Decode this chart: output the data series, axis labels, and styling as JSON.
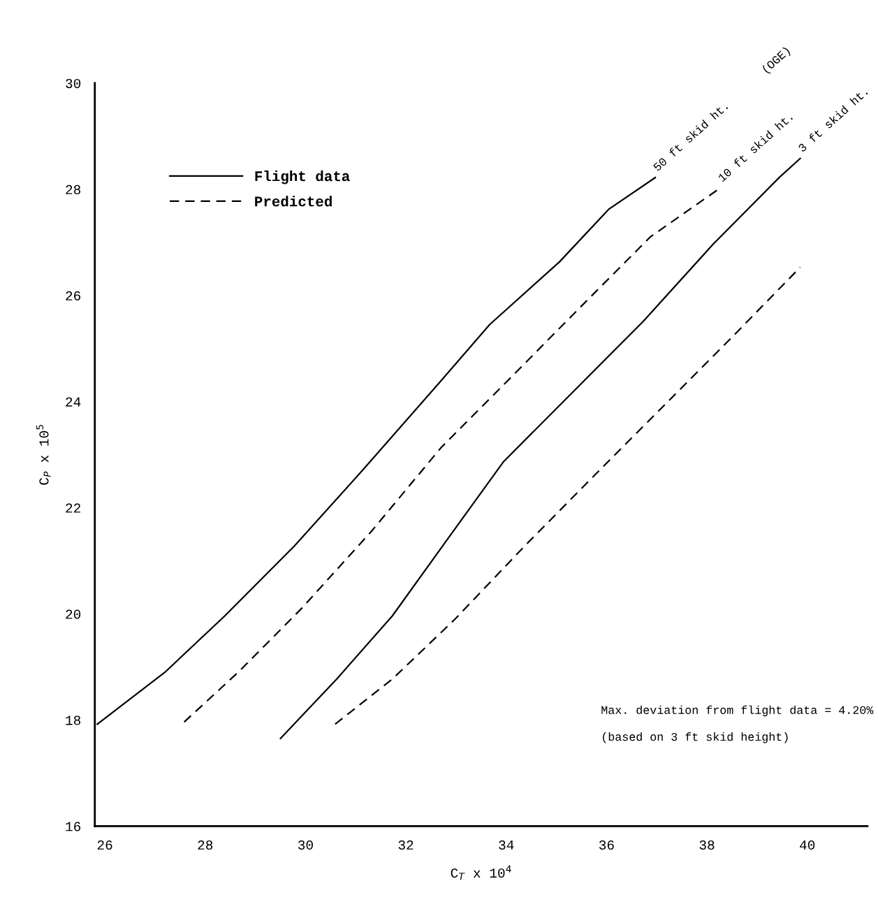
{
  "chart_data": {
    "type": "line",
    "xlabel": "C$_{T}$ x 10$^{4}$",
    "ylabel": "C$_{P}$ x 10$^{5}$",
    "xlim": [
      25.8,
      41.2
    ],
    "ylim": [
      16,
      30
    ],
    "xticks": [
      26,
      28,
      30,
      32,
      34,
      36,
      38,
      40
    ],
    "yticks": [
      16,
      18,
      20,
      22,
      24,
      26,
      28,
      30
    ],
    "grid": false,
    "marker": "none",
    "series": [
      {
        "name": "50 ft skid ht.",
        "color": "#000000",
        "line_style": "solid",
        "x": [
          25.85,
          27.21,
          28.39,
          29.78,
          31.17,
          32.7,
          33.67,
          35.06,
          36.04,
          36.97
        ],
        "values": [
          17.92,
          18.91,
          19.96,
          21.28,
          22.74,
          24.39,
          25.45,
          26.63,
          27.62,
          28.22
        ]
      },
      {
        "name": "10 ft skid ht.",
        "color": "#000000",
        "line_style": "dashed",
        "x": [
          27.58,
          28.67,
          29.92,
          31.31,
          32.7,
          34.09,
          35.48,
          36.87,
          38.26
        ],
        "values": [
          17.96,
          18.91,
          20.1,
          21.55,
          23.13,
          24.45,
          25.78,
          27.1,
          28.02
        ]
      },
      {
        "name": "3 ft skid ht.",
        "color": "#000000",
        "line_style": "solid",
        "x": [
          29.5,
          30.62,
          31.73,
          32.84,
          33.95,
          35.34,
          36.73,
          38.12,
          39.44,
          39.86
        ],
        "values": [
          17.65,
          18.77,
          19.96,
          21.42,
          22.87,
          24.19,
          25.51,
          26.96,
          28.22,
          28.58
        ]
      },
      {
        "color": "#000000",
        "line_style": "dashed",
        "x": [
          30.59,
          31.73,
          32.98,
          34.37,
          35.76,
          37.15,
          38.54,
          39.86
        ],
        "values": [
          17.92,
          18.77,
          19.9,
          21.28,
          22.61,
          23.93,
          25.25,
          26.53
        ]
      }
    ],
    "annotations": [
      "Flight data",
      "Predicted",
      "(OGE)",
      "Max. deviation from flight data = 4.20%",
      "(based on 3 ft skid height)"
    ]
  }
}
